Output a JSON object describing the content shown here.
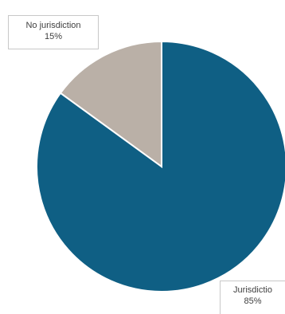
{
  "chart_data": {
    "type": "pie",
    "title": "",
    "slices": [
      {
        "label": "Jurisdiction",
        "value": 85,
        "display_label": "Jurisdictio",
        "display_value": "85%",
        "color": "#0f5f84"
      },
      {
        "label": "No jurisdiction",
        "value": 15,
        "display_label": "No jurisdiction",
        "display_value": "15%",
        "color": "#bab0a7"
      }
    ],
    "legend": "none",
    "data_labels": "callout"
  }
}
